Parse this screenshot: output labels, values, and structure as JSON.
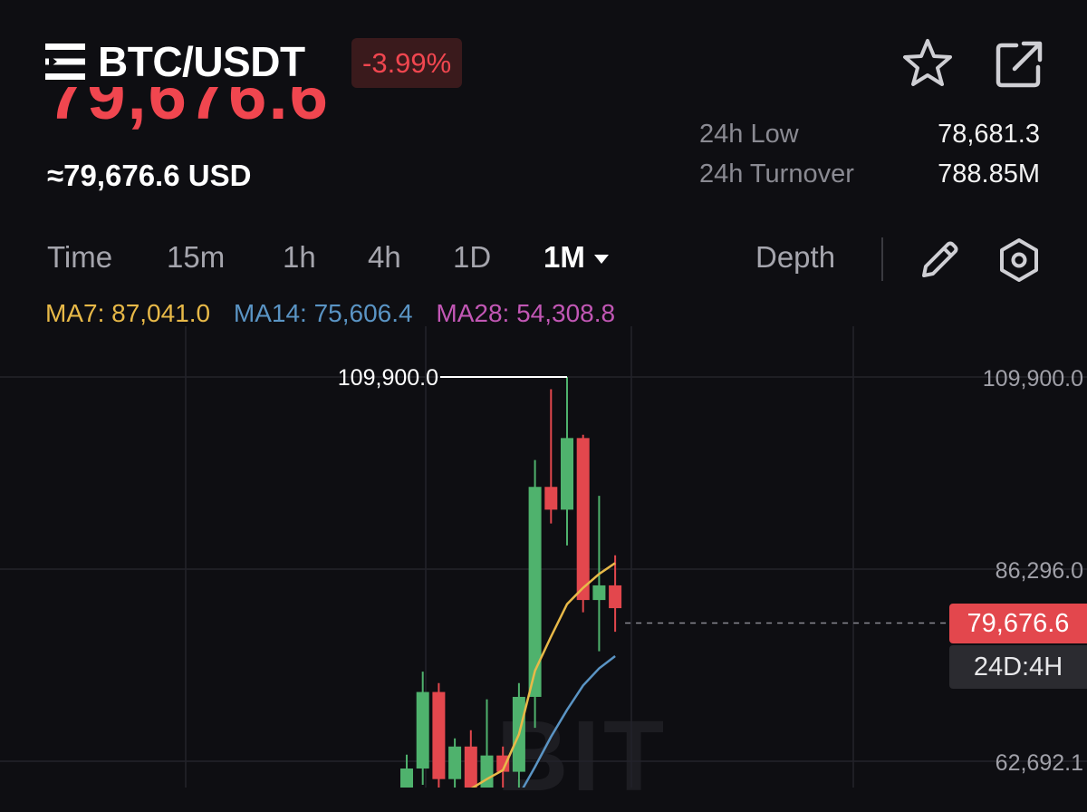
{
  "header": {
    "pair": "BTC/USDT",
    "change": "-3.99%",
    "last_price_partial": "79,676.6",
    "usd_price": "≈79,676.6 USD"
  },
  "stats": [
    {
      "label": "24h Low",
      "value": "78,681.3"
    },
    {
      "label": "24h Turnover",
      "value": "788.85M"
    }
  ],
  "tabs": [
    "Time",
    "15m",
    "1h",
    "4h",
    "1D",
    "1M"
  ],
  "active_tab": "1M",
  "depth_label": "Depth",
  "indicators": {
    "ma7": "MA7: 87,041.0",
    "ma14": "MA14: 75,606.4",
    "ma28": "MA28: 54,308.8"
  },
  "colors": {
    "up": "#4fb26d",
    "down": "#e3474d",
    "ma7": "#e8b948",
    "ma14": "#5a94c4",
    "ma28": "#c257b5",
    "background": "#0e0e12"
  },
  "watermark": "BIT",
  "price_tag": "79,676.6",
  "countdown": "24D:4H",
  "chart_data": {
    "type": "candlestick",
    "y_axis_labels": [
      "109,900.0",
      "86,296.0",
      "62,692.1"
    ],
    "y_axis_values": [
      109900,
      86296,
      62692.1
    ],
    "high_marker": {
      "value": 109900,
      "label": "109,900.0"
    },
    "current_price": 79676.6,
    "candles": [
      {
        "open": 58000,
        "close": 61800,
        "high": 63500,
        "low": 57000
      },
      {
        "open": 61800,
        "close": 71200,
        "high": 73700,
        "low": 59800
      },
      {
        "open": 71200,
        "close": 60500,
        "high": 72300,
        "low": 59000
      },
      {
        "open": 60500,
        "close": 64500,
        "high": 65500,
        "low": 57500
      },
      {
        "open": 64500,
        "close": 58900,
        "high": 66500,
        "low": 52500
      },
      {
        "open": 58900,
        "close": 63400,
        "high": 70300,
        "low": 58000
      },
      {
        "open": 63400,
        "close": 61400,
        "high": 64500,
        "low": 58800
      },
      {
        "open": 61400,
        "close": 70600,
        "high": 72300,
        "low": 57000
      },
      {
        "open": 70600,
        "close": 96400,
        "high": 99700,
        "low": 66800
      },
      {
        "open": 96400,
        "close": 93600,
        "high": 108400,
        "low": 91900
      },
      {
        "open": 93600,
        "close": 102400,
        "high": 109900,
        "low": 89200
      },
      {
        "open": 102400,
        "close": 82500,
        "high": 102800,
        "low": 81000
      },
      {
        "open": 82500,
        "close": 84300,
        "high": 95300,
        "low": 76200
      },
      {
        "open": 84300,
        "close": 81500,
        "high": 88000,
        "low": 78600
      }
    ],
    "ma7": [
      54600,
      57000,
      58000,
      58800,
      59300,
      60500,
      61600,
      66000,
      73800,
      78000,
      82000,
      84000,
      85700,
      87041
    ],
    "ma14": [
      null,
      null,
      null,
      null,
      null,
      null,
      55000,
      58500,
      62000,
      65700,
      69000,
      72000,
      74100,
      75606.4
    ],
    "grid": true
  }
}
